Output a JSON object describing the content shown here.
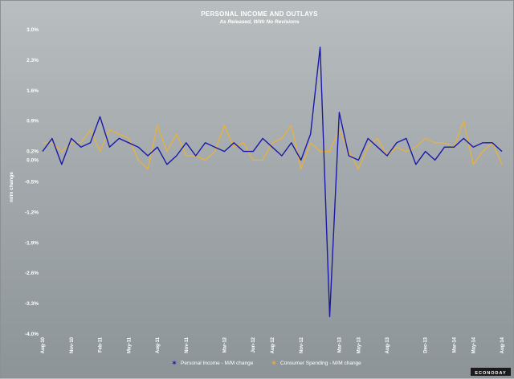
{
  "chart_data": {
    "type": "line",
    "title": "PERSONAL INCOME AND OUTLAYS",
    "subtitle": "As Released, With No Revisions",
    "ylabel": "m/m change",
    "xlabel": "",
    "ylim": [
      -4.0,
      3.0
    ],
    "yticks": [
      "3.0%",
      "2.3%",
      "1.6%",
      "0.9%",
      "0.2%",
      "0.0%",
      "-0.5%",
      "-1.2%",
      "-1.9%",
      "-2.6%",
      "-3.3%",
      "-4.0%"
    ],
    "ytick_values": [
      3.0,
      2.3,
      1.6,
      0.9,
      0.2,
      0.0,
      -0.5,
      -1.2,
      -1.9,
      -2.6,
      -3.3,
      -4.0
    ],
    "x": [
      "Aug-10",
      "Sep-10",
      "Oct-10",
      "Nov-10",
      "Dec-10",
      "Jan-11",
      "Feb-11",
      "Mar-11",
      "Apr-11",
      "May-11",
      "Jun-11",
      "Jul-11",
      "Aug-11",
      "Sep-11",
      "Oct-11",
      "Nov-11",
      "Dec-11",
      "Jan-12",
      "Feb-12",
      "Mar-12",
      "Apr-12",
      "May-12",
      "Jun-12",
      "Jul-12",
      "Aug-12",
      "Sep-12",
      "Oct-12",
      "Nov-12",
      "Dec-12",
      "Jan-13",
      "Feb-13",
      "Mar-13",
      "Apr-13",
      "May-13",
      "Jun-13",
      "Jul-13",
      "Aug-13",
      "Sep-13",
      "Oct-13",
      "Nov-13",
      "Dec-13",
      "Jan-14",
      "Feb-14",
      "Mar-14",
      "Apr-14",
      "May-14",
      "Jun-14",
      "Jul-14",
      "Aug-14"
    ],
    "xtick_labels": [
      "Aug-10",
      "Nov-10",
      "Feb-11",
      "May-11",
      "Aug-11",
      "Nov-11",
      "Mar-12",
      "Jun-12",
      "Aug-12",
      "Nov-12",
      "Mar-13",
      "May-13",
      "Aug-13",
      "Dec-13",
      "Mar-14",
      "May-14",
      "Aug-14"
    ],
    "xtick_indices": [
      0,
      3,
      6,
      9,
      12,
      15,
      19,
      22,
      24,
      27,
      31,
      33,
      36,
      40,
      43,
      45,
      48
    ],
    "grid": false,
    "legend_position": "bottom-center",
    "series": [
      {
        "name": "Personal Income - M/M change",
        "color": "#1a1aa8",
        "values": [
          0.2,
          0.5,
          -0.1,
          0.5,
          0.3,
          0.4,
          1.0,
          0.3,
          0.5,
          0.4,
          0.3,
          0.1,
          0.3,
          -0.1,
          0.1,
          0.4,
          0.1,
          0.4,
          0.3,
          0.2,
          0.4,
          0.2,
          0.2,
          0.5,
          0.3,
          0.1,
          0.4,
          0.0,
          0.6,
          2.6,
          -3.6,
          1.1,
          0.1,
          0.0,
          0.5,
          0.3,
          0.1,
          0.4,
          0.5,
          -0.1,
          0.2,
          0.0,
          0.3,
          0.3,
          0.5,
          0.3,
          0.4,
          0.4,
          0.2
        ]
      },
      {
        "name": "Consumer Spending - M/M change",
        "color": "#e8b23a",
        "values": [
          0.4,
          0.4,
          0.2,
          0.4,
          0.4,
          0.7,
          0.2,
          0.7,
          0.6,
          0.5,
          0.0,
          -0.2,
          0.8,
          0.2,
          0.6,
          0.1,
          0.1,
          0.0,
          0.2,
          0.8,
          0.3,
          0.4,
          0.0,
          0.0,
          0.4,
          0.5,
          0.8,
          -0.2,
          0.4,
          0.2,
          0.2,
          0.7,
          0.2,
          -0.2,
          0.3,
          0.5,
          0.1,
          0.3,
          0.2,
          0.3,
          0.5,
          0.4,
          0.4,
          0.3,
          0.9,
          -0.1,
          0.2,
          0.4,
          -0.1
        ]
      }
    ]
  },
  "branding": {
    "logo_text": "ECONODAY",
    "logo_color": "#1b1b1b"
  }
}
